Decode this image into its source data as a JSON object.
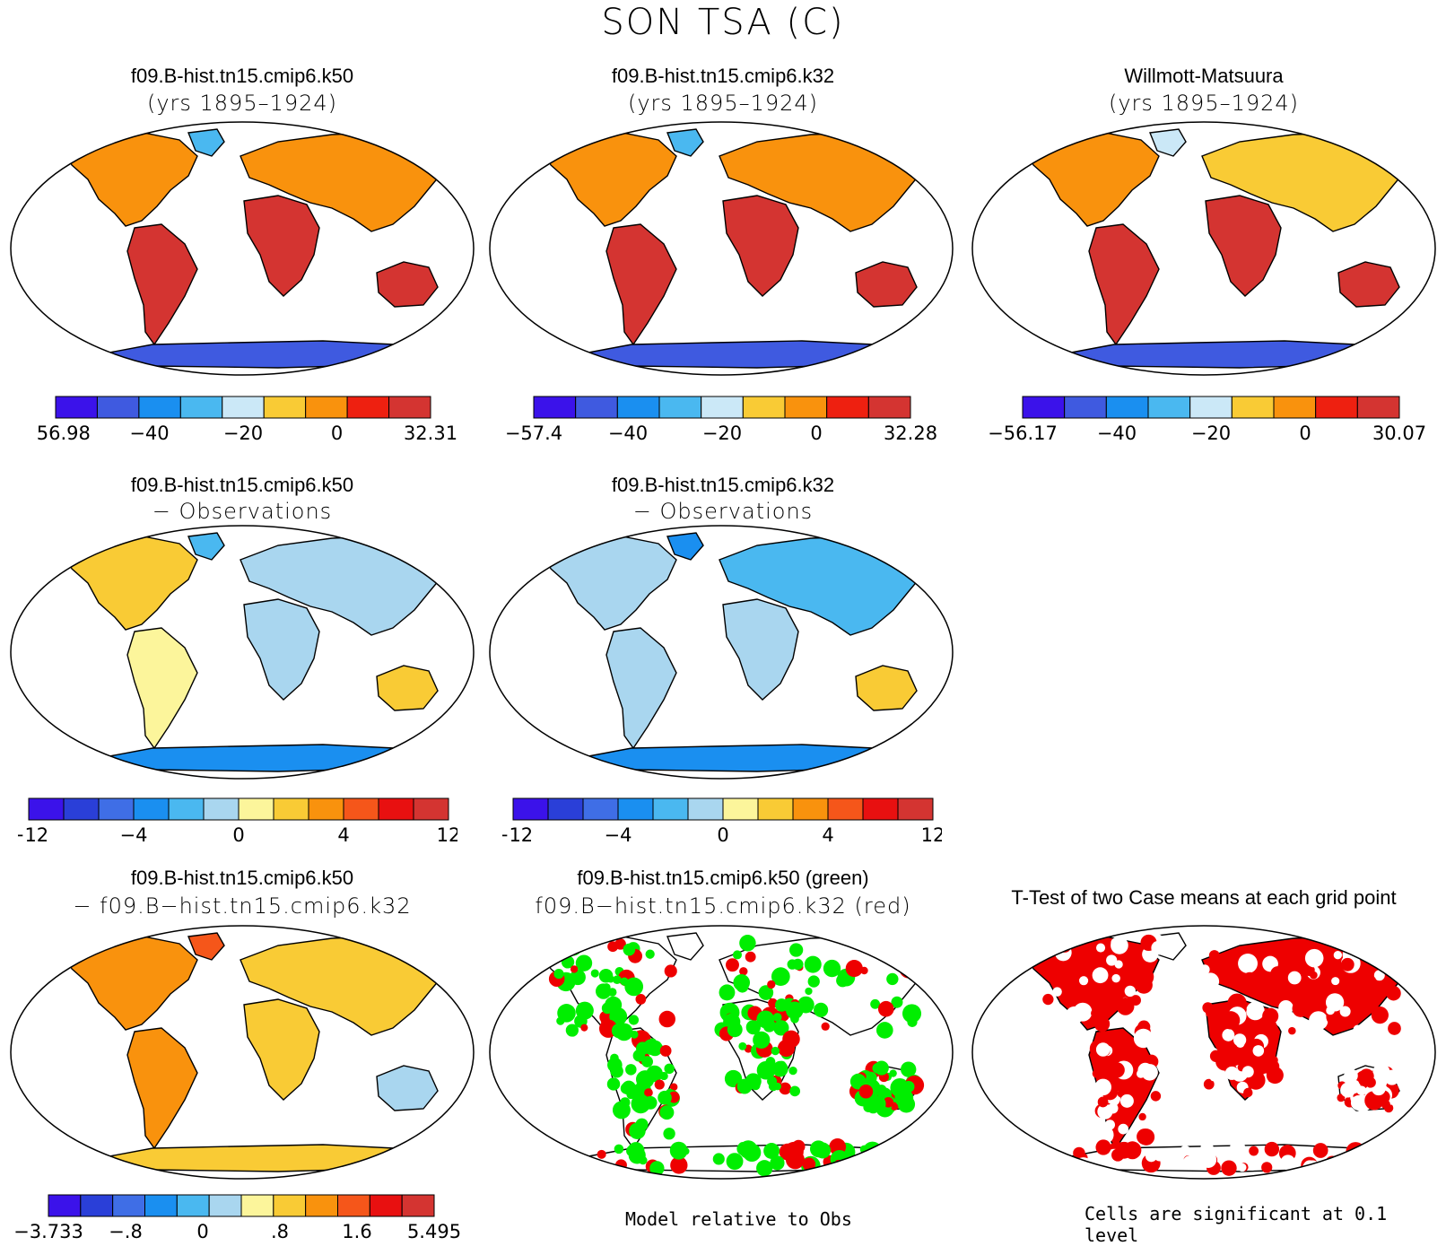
{
  "title": "SON TSA (C)",
  "colors": {
    "abs": [
      "#3b12ea",
      "#3f5ae0",
      "#1a8ff0",
      "#4ab8f0",
      "#cbe8f7",
      "#f9cb35",
      "#f9920d",
      "#ee2010",
      "#d43431"
    ],
    "diff": [
      "#3b12ea",
      "#2a3fd8",
      "#3f6ee6",
      "#1a8ff0",
      "#4ab8f0",
      "#a9d6ef",
      "#fcf59b",
      "#f9cb35",
      "#f9920d",
      "#f5561a",
      "#e81010",
      "#d43431"
    ],
    "cc": [
      "#3b12ea",
      "#2a3fd8",
      "#3f6ee6",
      "#1a8ff0",
      "#4ab8f0",
      "#a9d6ef",
      "#fcf59b",
      "#f9cb35",
      "#f9920d",
      "#f5561a",
      "#e81010",
      "#d43431"
    ],
    "sig_green": "#00ee00",
    "sig_red": "#ee0000",
    "ocean": "#ffffff",
    "coast": "#000000"
  },
  "panels": [
    {
      "id": "k50-abs",
      "title": "f09.B-hist.tn15.cmip6.k50",
      "subtitle": "(yrs 1895–1924)",
      "colorbar": {
        "labels": [
          "−56.98",
          "−40",
          "−20",
          "0",
          "32.31"
        ]
      }
    },
    {
      "id": "k32-abs",
      "title": "f09.B-hist.tn15.cmip6.k32",
      "subtitle": "(yrs 1895–1924)",
      "colorbar": {
        "labels": [
          "−57.4",
          "−40",
          "−20",
          "0",
          "32.28"
        ]
      }
    },
    {
      "id": "obs-abs",
      "title": "Willmott-Matsuura",
      "subtitle": "(yrs 1895–1924)",
      "colorbar": {
        "labels": [
          "−56.17",
          "−40",
          "−20",
          "0",
          "30.07"
        ]
      }
    },
    {
      "id": "k50-obs",
      "title": "f09.B-hist.tn15.cmip6.k50",
      "subtitle": "− Observations",
      "colorbar": {
        "labels": [
          "−12",
          "−4",
          "0",
          "4",
          "12"
        ]
      }
    },
    {
      "id": "k32-obs",
      "title": "f09.B-hist.tn15.cmip6.k32",
      "subtitle": "− Observations",
      "colorbar": {
        "labels": [
          "−12",
          "−4",
          "0",
          "4",
          "12"
        ]
      }
    },
    {
      "id": "k50-k32",
      "title": "f09.B-hist.tn15.cmip6.k50",
      "subtitle": "− f09.B−hist.tn15.cmip6.k32",
      "colorbar": {
        "labels": [
          "−3.733",
          "−.8",
          "0",
          ".8",
          "1.6",
          "5.495"
        ]
      }
    },
    {
      "id": "relative",
      "title": "f09.B-hist.tn15.cmip6.k50 (green)",
      "subtitle": "f09.B−hist.tn15.cmip6.k32 (red)",
      "footnote": "Model relative to Obs"
    },
    {
      "id": "ttest",
      "title": "T-Test of two Case means at each grid point",
      "footnote": "Cells are significant at 0.1 level"
    }
  ]
}
